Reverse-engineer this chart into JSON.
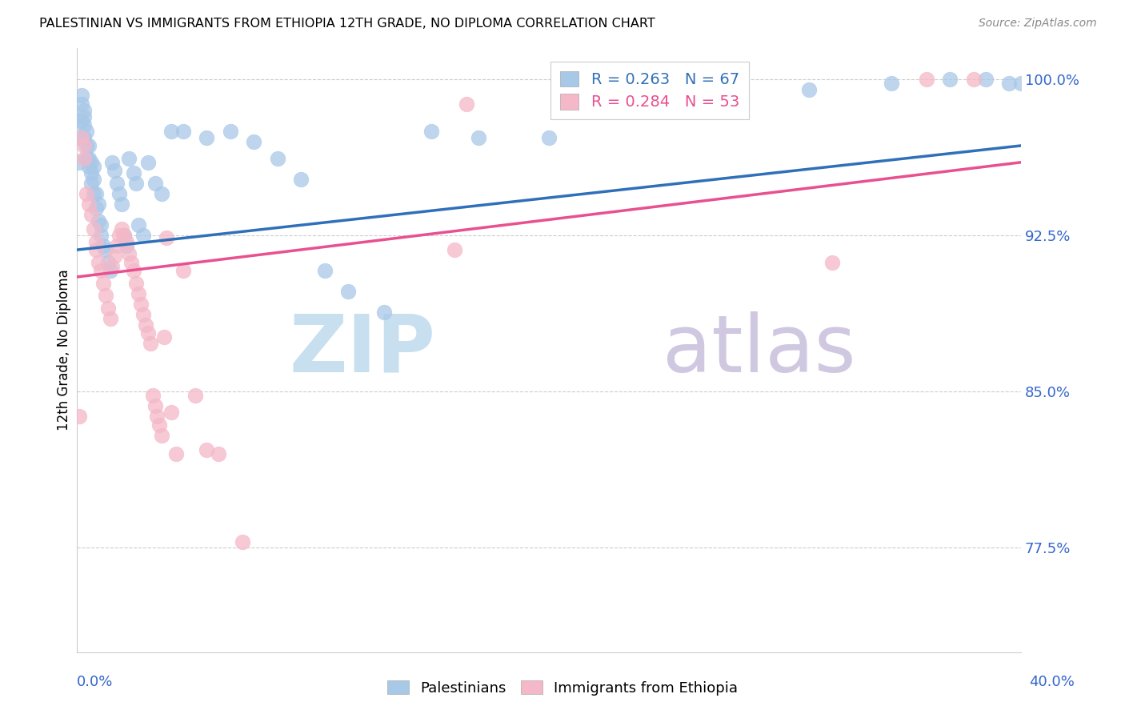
{
  "title": "PALESTINIAN VS IMMIGRANTS FROM ETHIOPIA 12TH GRADE, NO DIPLOMA CORRELATION CHART",
  "source": "Source: ZipAtlas.com",
  "ylabel": "12th Grade, No Diploma",
  "ytick_labels": [
    "100.0%",
    "92.5%",
    "85.0%",
    "77.5%"
  ],
  "ytick_values": [
    1.0,
    0.925,
    0.85,
    0.775
  ],
  "xlim": [
    0.0,
    0.4
  ],
  "ylim": [
    0.725,
    1.015
  ],
  "legend_r1": "R = 0.263   N = 67",
  "legend_r2": "R = 0.284   N = 53",
  "blue_color": "#a8c8e8",
  "pink_color": "#f4b8c8",
  "blue_line_color": "#3070b8",
  "pink_line_color": "#e85090",
  "watermark_zip": "ZIP",
  "watermark_atlas": "atlas",
  "palestinians_x": [
    0.001,
    0.001,
    0.002,
    0.002,
    0.002,
    0.003,
    0.003,
    0.003,
    0.003,
    0.004,
    0.004,
    0.004,
    0.005,
    0.005,
    0.005,
    0.006,
    0.006,
    0.006,
    0.007,
    0.007,
    0.007,
    0.008,
    0.008,
    0.009,
    0.009,
    0.01,
    0.01,
    0.011,
    0.012,
    0.013,
    0.014,
    0.015,
    0.016,
    0.017,
    0.018,
    0.019,
    0.02,
    0.021,
    0.022,
    0.024,
    0.025,
    0.026,
    0.028,
    0.03,
    0.033,
    0.036,
    0.04,
    0.045,
    0.055,
    0.065,
    0.075,
    0.085,
    0.095,
    0.105,
    0.115,
    0.13,
    0.15,
    0.17,
    0.2,
    0.23,
    0.27,
    0.31,
    0.345,
    0.37,
    0.385,
    0.395,
    0.4
  ],
  "palestinians_y": [
    0.96,
    0.972,
    0.98,
    0.988,
    0.992,
    0.985,
    0.982,
    0.978,
    0.972,
    0.975,
    0.968,
    0.962,
    0.968,
    0.962,
    0.958,
    0.96,
    0.955,
    0.95,
    0.958,
    0.952,
    0.945,
    0.945,
    0.938,
    0.94,
    0.932,
    0.93,
    0.925,
    0.92,
    0.918,
    0.912,
    0.908,
    0.96,
    0.956,
    0.95,
    0.945,
    0.94,
    0.925,
    0.92,
    0.962,
    0.955,
    0.95,
    0.93,
    0.925,
    0.96,
    0.95,
    0.945,
    0.975,
    0.975,
    0.972,
    0.975,
    0.97,
    0.962,
    0.952,
    0.908,
    0.898,
    0.888,
    0.975,
    0.972,
    0.972,
    0.99,
    0.995,
    0.995,
    0.998,
    1.0,
    1.0,
    0.998,
    0.998
  ],
  "ethiopia_x": [
    0.001,
    0.002,
    0.003,
    0.003,
    0.004,
    0.005,
    0.006,
    0.007,
    0.008,
    0.008,
    0.009,
    0.01,
    0.011,
    0.012,
    0.013,
    0.014,
    0.015,
    0.016,
    0.017,
    0.018,
    0.019,
    0.02,
    0.021,
    0.022,
    0.023,
    0.024,
    0.025,
    0.026,
    0.027,
    0.028,
    0.029,
    0.03,
    0.031,
    0.032,
    0.033,
    0.034,
    0.035,
    0.036,
    0.037,
    0.038,
    0.04,
    0.042,
    0.045,
    0.05,
    0.055,
    0.06,
    0.07,
    0.16,
    0.165,
    0.25,
    0.32,
    0.36,
    0.38
  ],
  "ethiopia_y": [
    0.838,
    0.972,
    0.968,
    0.962,
    0.945,
    0.94,
    0.935,
    0.928,
    0.922,
    0.918,
    0.912,
    0.908,
    0.902,
    0.896,
    0.89,
    0.885,
    0.91,
    0.915,
    0.92,
    0.925,
    0.928,
    0.925,
    0.922,
    0.916,
    0.912,
    0.908,
    0.902,
    0.897,
    0.892,
    0.887,
    0.882,
    0.878,
    0.873,
    0.848,
    0.843,
    0.838,
    0.834,
    0.829,
    0.876,
    0.924,
    0.84,
    0.82,
    0.908,
    0.848,
    0.822,
    0.82,
    0.778,
    0.918,
    0.988,
    0.998,
    0.912,
    1.0,
    1.0
  ],
  "blue_trend_x": [
    0.0,
    0.4
  ],
  "blue_trend_y": [
    0.918,
    0.968
  ],
  "pink_trend_x": [
    0.0,
    0.4
  ],
  "pink_trend_y": [
    0.905,
    0.96
  ]
}
